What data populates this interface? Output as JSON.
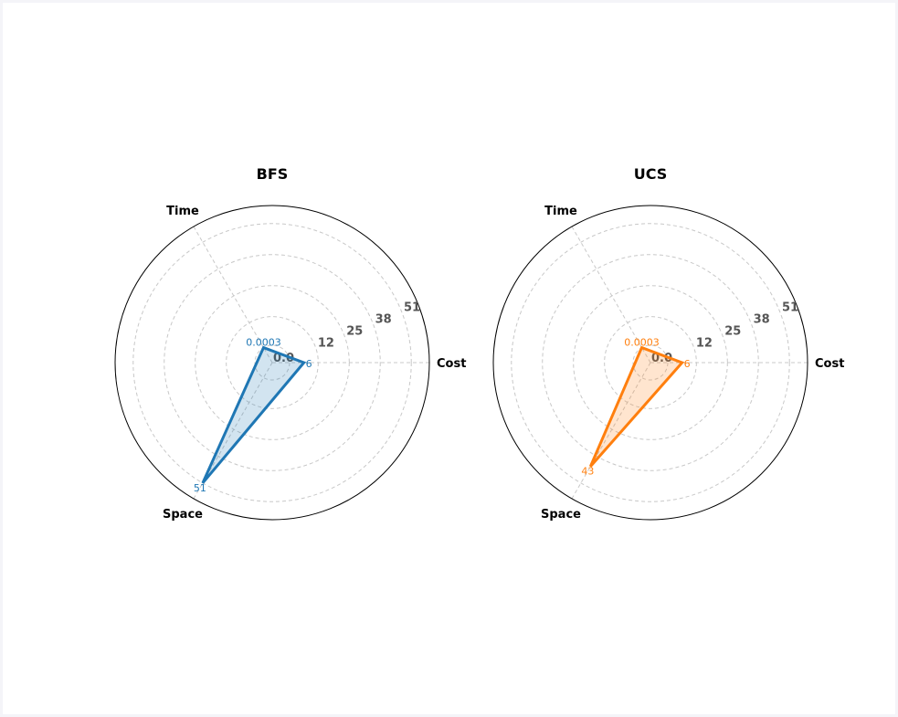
{
  "chart_data": [
    {
      "type": "radar",
      "title": "BFS",
      "axes": [
        "Cost",
        "Time",
        "Space"
      ],
      "radial_ticks": [
        0.0,
        12,
        25,
        38,
        51
      ],
      "radial_tick_labels": [
        "0.0",
        "12",
        "25",
        "38",
        "51"
      ],
      "rmax": 55,
      "grid": true,
      "series": [
        {
          "values": [
            6,
            0.0003,
            51
          ],
          "value_labels": [
            "6",
            "0.0003",
            "51"
          ],
          "color": "#1f77b4"
        }
      ]
    },
    {
      "type": "radar",
      "title": "UCS",
      "axes": [
        "Cost",
        "Time",
        "Space"
      ],
      "radial_ticks": [
        0.0,
        12,
        25,
        38,
        51
      ],
      "radial_tick_labels": [
        "0.0",
        "12",
        "25",
        "38",
        "51"
      ],
      "rmax": 55,
      "grid": true,
      "series": [
        {
          "values": [
            6,
            0.0003,
            43
          ],
          "value_labels": [
            "6",
            "0.0003",
            "43"
          ],
          "color": "#ff7f0e"
        }
      ]
    }
  ]
}
